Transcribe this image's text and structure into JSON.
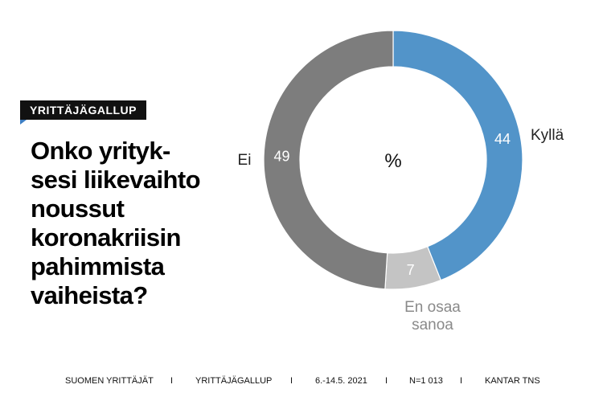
{
  "badge": "YRITTÄJÄGALLUP",
  "question_lines": [
    "Onko yrityk-",
    "sesi liikevaihto",
    "noussut",
    "koronakriisin",
    "pahimmista",
    "vaiheista?"
  ],
  "chart_data": {
    "type": "pie",
    "donut": true,
    "center_label": "%",
    "slices": [
      {
        "label": "Kyllä",
        "value": 44,
        "color": "#5294c9"
      },
      {
        "label": "En osaa sanoa",
        "value": 7,
        "color": "#c4c4c4"
      },
      {
        "label": "Ei",
        "value": 49,
        "color": "#7d7d7d"
      }
    ],
    "value_label_color": "#ffffff"
  },
  "footer": {
    "items": [
      "SUOMEN YRITTÄJÄT",
      "YRITTÄJÄGALLUP",
      "6.-14.5. 2021",
      "N=1 013",
      "KANTAR TNS"
    ],
    "separator": "I"
  }
}
